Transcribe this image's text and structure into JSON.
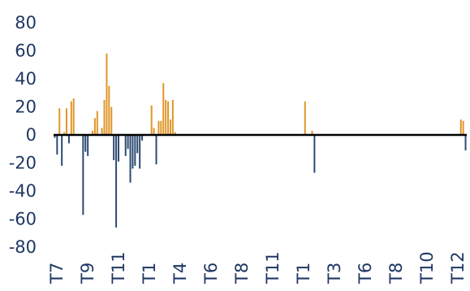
{
  "chart_data": {
    "type": "bar",
    "title": "",
    "xlabel": "",
    "ylabel": "",
    "ylim": [
      -80,
      80
    ],
    "yticks": [
      80,
      60,
      40,
      20,
      0,
      -20,
      -40,
      -60,
      -80
    ],
    "xtick_labels": [
      "T7",
      "T9",
      "T11",
      "T1",
      "T4",
      "T6",
      "T8",
      "T11",
      "T1",
      "T3",
      "T6",
      "T8",
      "T10",
      "T12"
    ],
    "grid": false,
    "legend": "none",
    "colors": {
      "positive": "#e0962a",
      "negative": "#2c4a72",
      "axis": "#000000",
      "text": "#1f3864"
    },
    "periods": 175,
    "values": [
      -2,
      -14,
      19,
      -22,
      2,
      19,
      -6,
      24,
      26,
      0,
      0,
      0,
      -57,
      -12,
      -15,
      0,
      3,
      12,
      17,
      0,
      5,
      25,
      58,
      35,
      20,
      -18,
      -66,
      -19,
      0,
      0,
      -15,
      -10,
      -34,
      -24,
      -22,
      -13,
      -24,
      -4,
      0,
      0,
      0,
      21,
      5,
      -21,
      10,
      10,
      37,
      25,
      24,
      11,
      25,
      2,
      0,
      0,
      0,
      0,
      0,
      0,
      0,
      0,
      0,
      0,
      0,
      0,
      0,
      0,
      0,
      0,
      0,
      0,
      0,
      0,
      0,
      0,
      0,
      0,
      0,
      0,
      0,
      0,
      0,
      0,
      0,
      0,
      0,
      0,
      0,
      0,
      0,
      0,
      0,
      0,
      0,
      0,
      0,
      0,
      0,
      0,
      0,
      0,
      0,
      0,
      0,
      0,
      0,
      0,
      24,
      0,
      0,
      3,
      -27,
      0,
      0,
      0,
      0,
      0,
      0,
      0,
      0,
      0,
      0,
      0,
      0,
      0,
      0,
      0,
      0,
      0,
      0,
      0,
      0,
      0,
      0,
      0,
      0,
      0,
      0,
      0,
      0,
      0,
      0,
      0,
      0,
      0,
      0,
      0,
      0,
      0,
      0,
      0,
      0,
      0,
      0,
      0,
      0,
      0,
      0,
      0,
      0,
      0,
      0,
      0,
      0,
      0,
      0,
      0,
      0,
      0,
      0,
      0,
      0,
      0,
      11,
      10,
      -11
    ]
  }
}
